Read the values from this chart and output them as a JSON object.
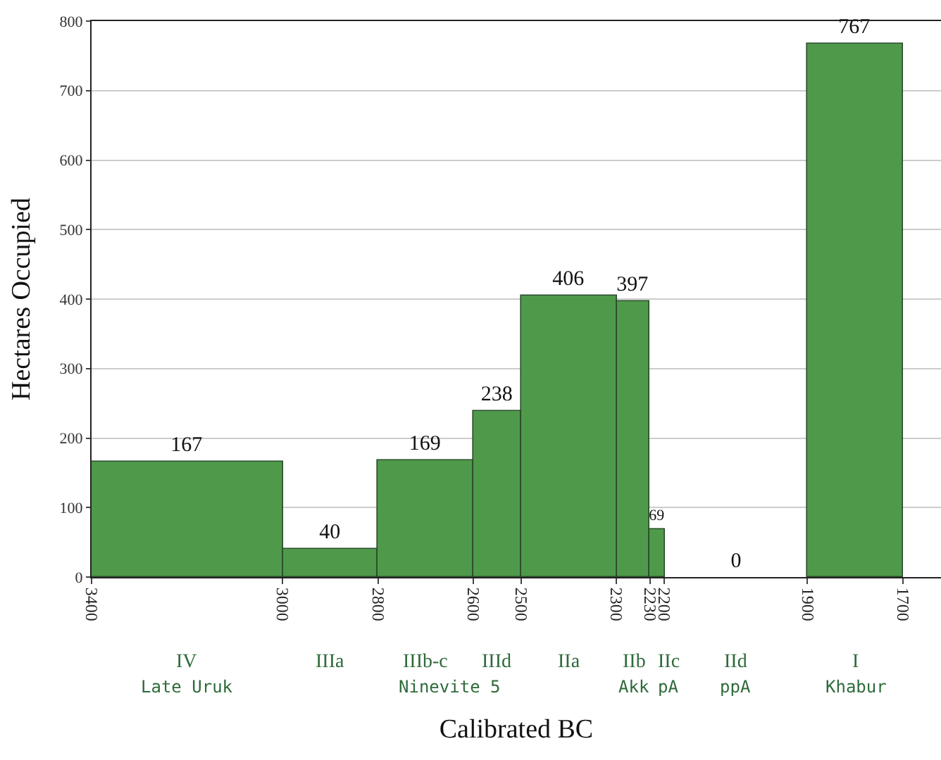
{
  "chart_data": {
    "type": "histogram",
    "xlabel": "Calibrated BC",
    "ylabel": "Hectares Occupied",
    "bins": [
      3400,
      3000,
      2800,
      2600,
      2500,
      2300,
      2230,
      2200,
      1900,
      1700
    ],
    "values": [
      167,
      40,
      169,
      238,
      406,
      397,
      69,
      0,
      767
    ],
    "color": "#4e9a4a",
    "data_labels": true,
    "xlim": [
      3400,
      1620
    ],
    "xticks": [
      3400,
      3000,
      2800,
      2600,
      2500,
      2300,
      2230,
      2200,
      1900,
      1700
    ],
    "ylim": [
      0,
      800
    ],
    "yticks": [
      0,
      100,
      200,
      300,
      400,
      500,
      600,
      700,
      800
    ],
    "grid": "y",
    "legend": false,
    "annotations": [
      "IV",
      "IIIa",
      "IIIb-c",
      "IIId",
      "IIa",
      "IIb",
      "IIc",
      "IId",
      "I",
      "Late Uruk",
      "Ninevite 5",
      "Akk",
      "pA",
      "ppA",
      "Khabur"
    ]
  }
}
